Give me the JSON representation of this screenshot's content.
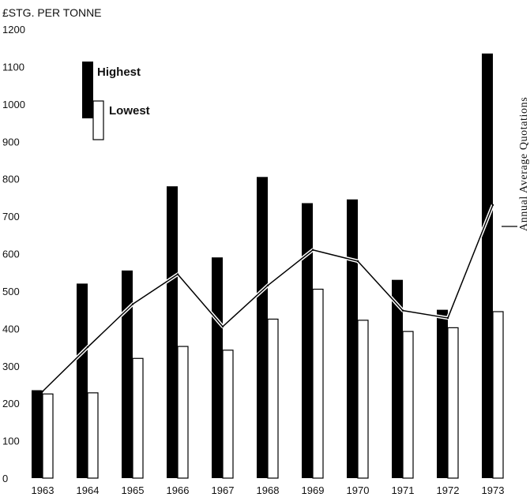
{
  "chart_data": {
    "type": "bar",
    "title": "",
    "ylabel": "£STG. PER TONNE",
    "xlabel": "",
    "ylim": [
      0,
      1200
    ],
    "yticks": [
      0,
      100,
      200,
      300,
      400,
      500,
      600,
      700,
      800,
      900,
      1000,
      1100,
      1200
    ],
    "categories": [
      "1963",
      "1964",
      "1965",
      "1966",
      "1967",
      "1968",
      "1969",
      "1970",
      "1971",
      "1972",
      "1973"
    ],
    "series": [
      {
        "name": "Highest",
        "type": "bar",
        "color": "#000000",
        "values": [
          235,
          520,
          555,
          780,
          590,
          805,
          735,
          745,
          530,
          450,
          1135
        ]
      },
      {
        "name": "Lowest",
        "type": "bar",
        "color": "#ffffff",
        "values": [
          225,
          228,
          320,
          352,
          342,
          425,
          505,
          422,
          392,
          402,
          445
        ]
      },
      {
        "name": "Annual Average Quotations",
        "type": "line",
        "color": "#000000",
        "values": [
          232,
          350,
          465,
          545,
          405,
          515,
          610,
          580,
          448,
          428,
          730
        ]
      }
    ],
    "legend": {
      "position": "top-left",
      "entries": [
        "Highest",
        "Lowest"
      ]
    },
    "annotations": [
      "Annual Average Quotations"
    ],
    "grid": false
  }
}
